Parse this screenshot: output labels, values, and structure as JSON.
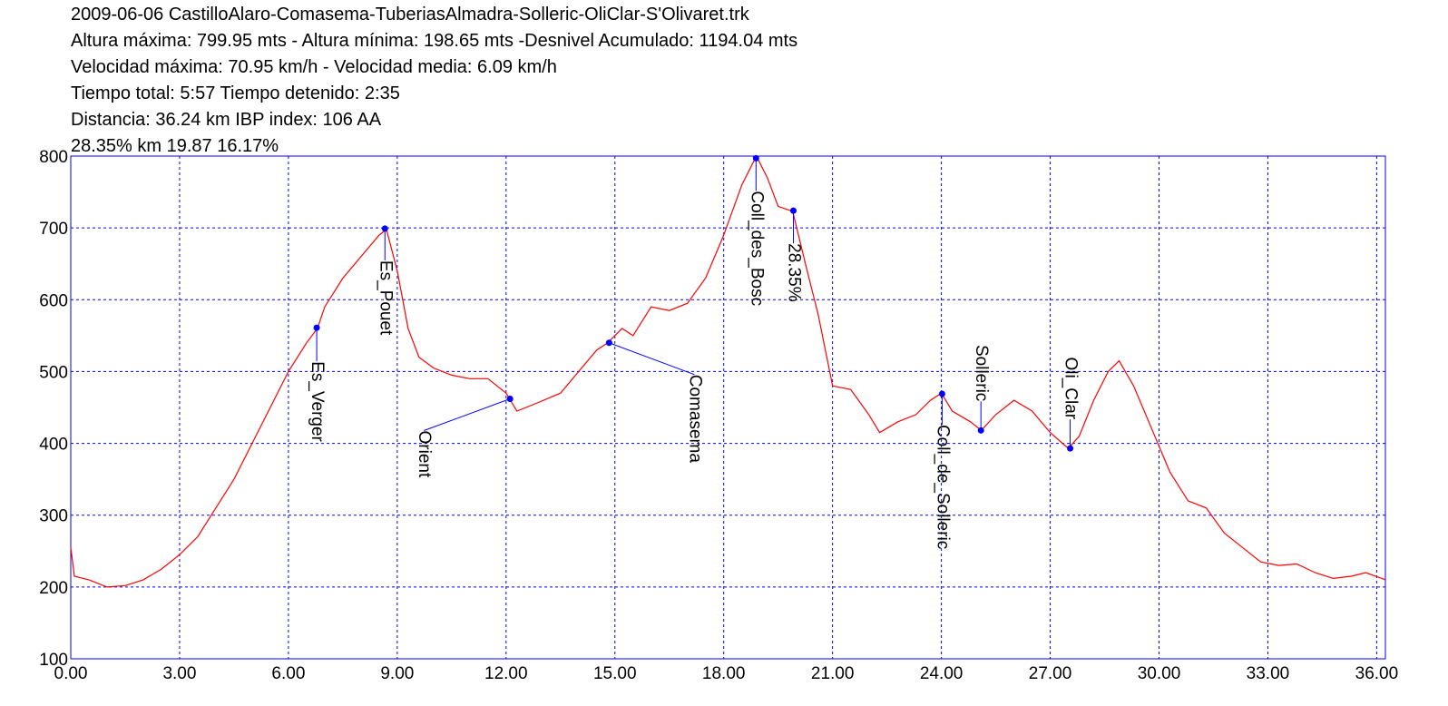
{
  "chart_data": {
    "type": "line",
    "title": "2009-06-06 CastilloAlaro-Comasema-TuberiasAlmadra-Solleric-OliClar-S'Olivaret.trk",
    "subtitles": [
      "Altura máxima: 799.95 mts - Altura mínima: 198.65 mts -Desnivel Acumulado: 1194.04 mts",
      "Velocidad máxima: 70.95 km/h - Velocidad media: 6.09 km/h",
      "Tiempo total: 5:57  Tiempo detenido: 2:35",
      "Distancia: 36.24 km IBP index: 106 AA",
      "28.35% km 19.87  16.17%"
    ],
    "color": "#ff0000",
    "grid": true,
    "grid_color": "#0000ff",
    "point_color": "#0000ff",
    "xlim": [
      0,
      36.24
    ],
    "ylim": [
      100,
      800
    ],
    "xticks": [
      {
        "value": 0,
        "label": "0.00"
      },
      {
        "value": 3,
        "label": "3.00"
      },
      {
        "value": 6,
        "label": "6.00"
      },
      {
        "value": 9,
        "label": "9.00"
      },
      {
        "value": 12,
        "label": "12.00"
      },
      {
        "value": 15,
        "label": "15.00"
      },
      {
        "value": 18,
        "label": "18.00"
      },
      {
        "value": 21,
        "label": "21.00"
      },
      {
        "value": 24,
        "label": "24.00"
      },
      {
        "value": 27,
        "label": "27.00"
      },
      {
        "value": 30,
        "label": "30.00"
      },
      {
        "value": 33,
        "label": "33.00"
      },
      {
        "value": 36,
        "label": "36.00"
      }
    ],
    "yticks": [
      100,
      200,
      300,
      400,
      500,
      600,
      700,
      800
    ],
    "x": [
      0,
      0.1,
      0.5,
      1.0,
      1.5,
      2.0,
      2.5,
      3.0,
      3.5,
      4.0,
      4.5,
      5.0,
      5.5,
      6.0,
      6.5,
      6.8,
      7.0,
      7.5,
      8.0,
      8.5,
      8.7,
      9.0,
      9.3,
      9.6,
      10.0,
      10.5,
      11.0,
      11.5,
      12.0,
      12.3,
      12.8,
      13.5,
      14.0,
      14.5,
      14.8,
      15.2,
      15.5,
      16.0,
      16.5,
      17.0,
      17.5,
      18.0,
      18.5,
      18.9,
      19.2,
      19.5,
      19.9,
      20.3,
      20.6,
      21.0,
      21.5,
      22.0,
      22.3,
      22.8,
      23.3,
      23.7,
      24.0,
      24.3,
      24.8,
      25.1,
      25.5,
      26.0,
      26.5,
      27.0,
      27.5,
      27.8,
      28.2,
      28.6,
      28.9,
      29.3,
      29.8,
      30.3,
      30.8,
      31.3,
      31.8,
      32.3,
      32.8,
      33.3,
      33.8,
      34.3,
      34.8,
      35.3,
      35.7,
      36.24
    ],
    "values": [
      255,
      215,
      210,
      200,
      202,
      210,
      225,
      245,
      270,
      310,
      350,
      400,
      450,
      500,
      540,
      560,
      590,
      630,
      660,
      690,
      698,
      640,
      560,
      520,
      505,
      495,
      490,
      490,
      470,
      445,
      455,
      470,
      500,
      530,
      540,
      560,
      550,
      590,
      585,
      595,
      630,
      690,
      760,
      800,
      770,
      730,
      723,
      640,
      580,
      480,
      475,
      440,
      415,
      430,
      440,
      460,
      470,
      445,
      430,
      418,
      440,
      460,
      445,
      415,
      393,
      410,
      460,
      500,
      515,
      480,
      420,
      360,
      320,
      310,
      275,
      255,
      235,
      230,
      232,
      220,
      212,
      215,
      220,
      210
    ],
    "points": [
      {
        "name": "Es_Verger",
        "x": 6.78,
        "y": 561
      },
      {
        "name": "Es_Pouet",
        "x": 8.66,
        "y": 699
      },
      {
        "name": "Orient",
        "x": 12.11,
        "y": 462
      },
      {
        "name": "Comasema",
        "x": 14.84,
        "y": 540
      },
      {
        "name": "Coll_des_Bosc",
        "x": 18.89,
        "y": 797
      },
      {
        "name": "28.35%",
        "x": 19.92,
        "y": 724
      },
      {
        "name": "Coll_de_Solleric",
        "x": 24.02,
        "y": 469
      },
      {
        "name": "Solleric",
        "x": 25.09,
        "y": 418
      },
      {
        "name": "Oli_Clar",
        "x": 27.55,
        "y": 393
      }
    ]
  }
}
